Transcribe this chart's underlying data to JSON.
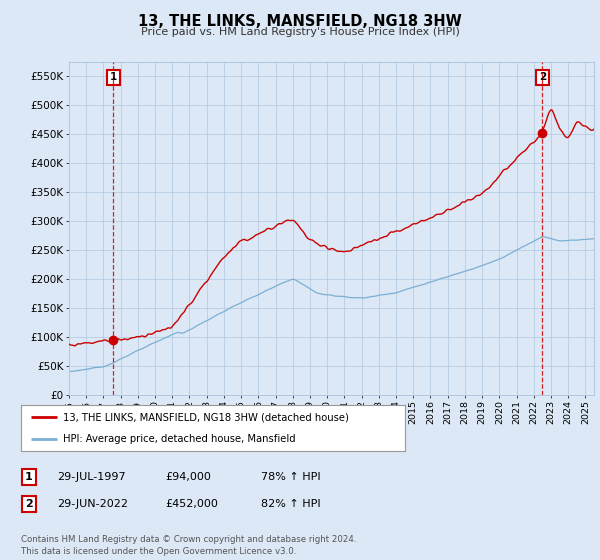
{
  "title": "13, THE LINKS, MANSFIELD, NG18 3HW",
  "subtitle": "Price paid vs. HM Land Registry's House Price Index (HPI)",
  "ylim": [
    0,
    575000
  ],
  "yticks": [
    0,
    50000,
    100000,
    150000,
    200000,
    250000,
    300000,
    350000,
    400000,
    450000,
    500000,
    550000
  ],
  "ytick_labels": [
    "£0",
    "£50K",
    "£100K",
    "£150K",
    "£200K",
    "£250K",
    "£300K",
    "£350K",
    "£400K",
    "£450K",
    "£500K",
    "£550K"
  ],
  "xlim_start": 1995.0,
  "xlim_end": 2025.5,
  "xticks": [
    1995,
    1996,
    1997,
    1998,
    1999,
    2000,
    2001,
    2002,
    2003,
    2004,
    2005,
    2006,
    2007,
    2008,
    2009,
    2010,
    2011,
    2012,
    2013,
    2014,
    2015,
    2016,
    2017,
    2018,
    2019,
    2020,
    2021,
    2022,
    2023,
    2024,
    2025
  ],
  "hpi_color": "#7bafd4",
  "price_color": "#cc0000",
  "sale1_x": 1997.58,
  "sale1_y": 94000,
  "sale1_label": "1",
  "sale2_x": 2022.5,
  "sale2_y": 452000,
  "sale2_label": "2",
  "annotation_box_color": "#cc0000",
  "dashed_line_color": "#cc0000",
  "legend_line1": "13, THE LINKS, MANSFIELD, NG18 3HW (detached house)",
  "legend_line2": "HPI: Average price, detached house, Mansfield",
  "table_row1": [
    "1",
    "29-JUL-1997",
    "£94,000",
    "78% ↑ HPI"
  ],
  "table_row2": [
    "2",
    "29-JUN-2022",
    "£452,000",
    "82% ↑ HPI"
  ],
  "footer": "Contains HM Land Registry data © Crown copyright and database right 2024.\nThis data is licensed under the Open Government Licence v3.0.",
  "bg_color": "#dce8f5",
  "plot_bg_color": "#dce8f5",
  "grid_color": "#b0c8e0",
  "plot_inner_bg": "#dce8f5"
}
